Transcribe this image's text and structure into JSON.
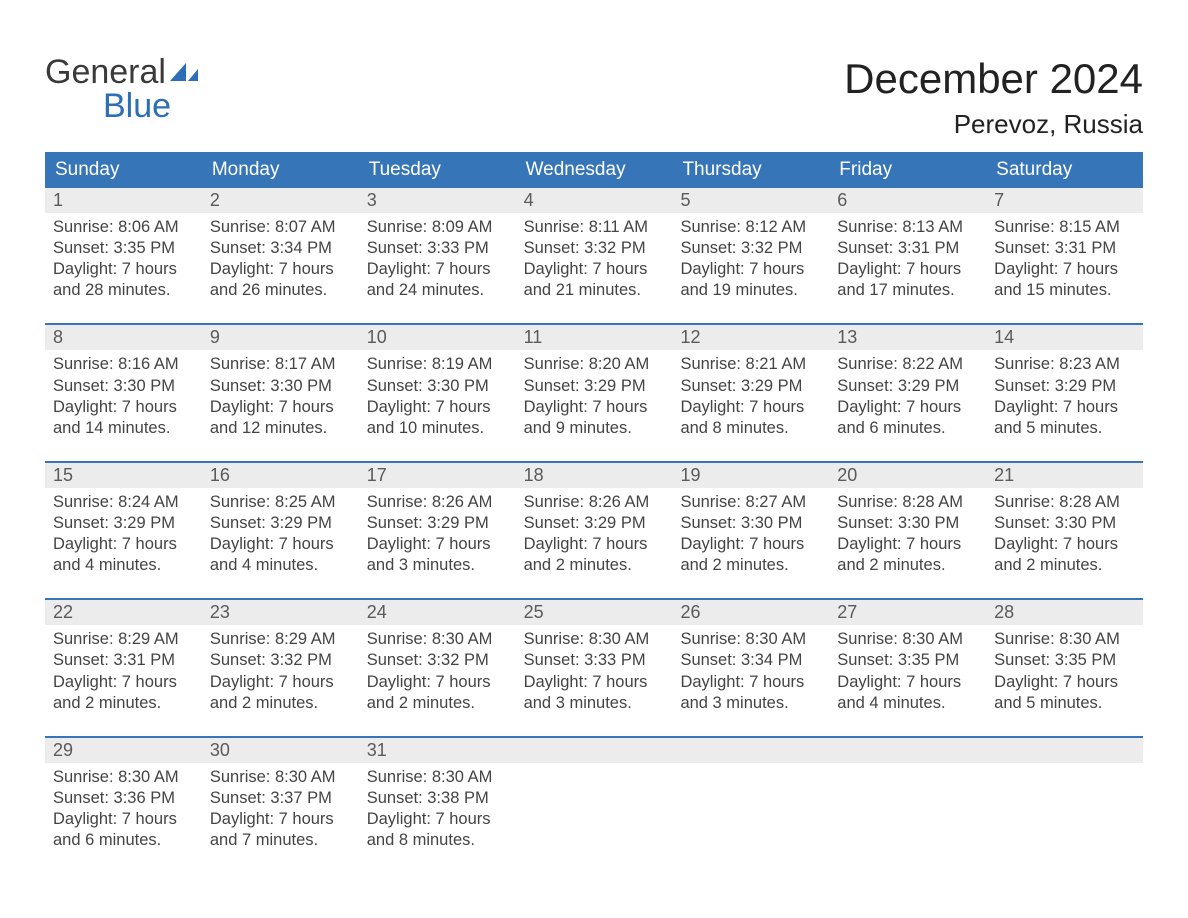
{
  "logo": {
    "word1": "General",
    "word2": "Blue",
    "accent_color": "#2c6fb6",
    "text_color": "#3a3a3a"
  },
  "title": "December 2024",
  "location": "Perevoz, Russia",
  "colors": {
    "header_bg": "#3676b8",
    "header_text": "#ffffff",
    "week_border": "#3676b8",
    "daynum_bg": "#ececec",
    "daynum_text": "#5a5a5a",
    "body_text": "#444444",
    "page_bg": "#ffffff"
  },
  "typography": {
    "month_title_fontsize": 42,
    "location_fontsize": 26,
    "dow_fontsize": 19,
    "daynum_fontsize": 18,
    "body_fontsize": 16.5,
    "font_family": "Arial"
  },
  "days_of_week": [
    "Sunday",
    "Monday",
    "Tuesday",
    "Wednesday",
    "Thursday",
    "Friday",
    "Saturday"
  ],
  "weeks": [
    [
      {
        "n": "1",
        "sunrise": "8:06 AM",
        "sunset": "3:35 PM",
        "daylight": "7 hours and 28 minutes."
      },
      {
        "n": "2",
        "sunrise": "8:07 AM",
        "sunset": "3:34 PM",
        "daylight": "7 hours and 26 minutes."
      },
      {
        "n": "3",
        "sunrise": "8:09 AM",
        "sunset": "3:33 PM",
        "daylight": "7 hours and 24 minutes."
      },
      {
        "n": "4",
        "sunrise": "8:11 AM",
        "sunset": "3:32 PM",
        "daylight": "7 hours and 21 minutes."
      },
      {
        "n": "5",
        "sunrise": "8:12 AM",
        "sunset": "3:32 PM",
        "daylight": "7 hours and 19 minutes."
      },
      {
        "n": "6",
        "sunrise": "8:13 AM",
        "sunset": "3:31 PM",
        "daylight": "7 hours and 17 minutes."
      },
      {
        "n": "7",
        "sunrise": "8:15 AM",
        "sunset": "3:31 PM",
        "daylight": "7 hours and 15 minutes."
      }
    ],
    [
      {
        "n": "8",
        "sunrise": "8:16 AM",
        "sunset": "3:30 PM",
        "daylight": "7 hours and 14 minutes."
      },
      {
        "n": "9",
        "sunrise": "8:17 AM",
        "sunset": "3:30 PM",
        "daylight": "7 hours and 12 minutes."
      },
      {
        "n": "10",
        "sunrise": "8:19 AM",
        "sunset": "3:30 PM",
        "daylight": "7 hours and 10 minutes."
      },
      {
        "n": "11",
        "sunrise": "8:20 AM",
        "sunset": "3:29 PM",
        "daylight": "7 hours and 9 minutes."
      },
      {
        "n": "12",
        "sunrise": "8:21 AM",
        "sunset": "3:29 PM",
        "daylight": "7 hours and 8 minutes."
      },
      {
        "n": "13",
        "sunrise": "8:22 AM",
        "sunset": "3:29 PM",
        "daylight": "7 hours and 6 minutes."
      },
      {
        "n": "14",
        "sunrise": "8:23 AM",
        "sunset": "3:29 PM",
        "daylight": "7 hours and 5 minutes."
      }
    ],
    [
      {
        "n": "15",
        "sunrise": "8:24 AM",
        "sunset": "3:29 PM",
        "daylight": "7 hours and 4 minutes."
      },
      {
        "n": "16",
        "sunrise": "8:25 AM",
        "sunset": "3:29 PM",
        "daylight": "7 hours and 4 minutes."
      },
      {
        "n": "17",
        "sunrise": "8:26 AM",
        "sunset": "3:29 PM",
        "daylight": "7 hours and 3 minutes."
      },
      {
        "n": "18",
        "sunrise": "8:26 AM",
        "sunset": "3:29 PM",
        "daylight": "7 hours and 2 minutes."
      },
      {
        "n": "19",
        "sunrise": "8:27 AM",
        "sunset": "3:30 PM",
        "daylight": "7 hours and 2 minutes."
      },
      {
        "n": "20",
        "sunrise": "8:28 AM",
        "sunset": "3:30 PM",
        "daylight": "7 hours and 2 minutes."
      },
      {
        "n": "21",
        "sunrise": "8:28 AM",
        "sunset": "3:30 PM",
        "daylight": "7 hours and 2 minutes."
      }
    ],
    [
      {
        "n": "22",
        "sunrise": "8:29 AM",
        "sunset": "3:31 PM",
        "daylight": "7 hours and 2 minutes."
      },
      {
        "n": "23",
        "sunrise": "8:29 AM",
        "sunset": "3:32 PM",
        "daylight": "7 hours and 2 minutes."
      },
      {
        "n": "24",
        "sunrise": "8:30 AM",
        "sunset": "3:32 PM",
        "daylight": "7 hours and 2 minutes."
      },
      {
        "n": "25",
        "sunrise": "8:30 AM",
        "sunset": "3:33 PM",
        "daylight": "7 hours and 3 minutes."
      },
      {
        "n": "26",
        "sunrise": "8:30 AM",
        "sunset": "3:34 PM",
        "daylight": "7 hours and 3 minutes."
      },
      {
        "n": "27",
        "sunrise": "8:30 AM",
        "sunset": "3:35 PM",
        "daylight": "7 hours and 4 minutes."
      },
      {
        "n": "28",
        "sunrise": "8:30 AM",
        "sunset": "3:35 PM",
        "daylight": "7 hours and 5 minutes."
      }
    ],
    [
      {
        "n": "29",
        "sunrise": "8:30 AM",
        "sunset": "3:36 PM",
        "daylight": "7 hours and 6 minutes."
      },
      {
        "n": "30",
        "sunrise": "8:30 AM",
        "sunset": "3:37 PM",
        "daylight": "7 hours and 7 minutes."
      },
      {
        "n": "31",
        "sunrise": "8:30 AM",
        "sunset": "3:38 PM",
        "daylight": "7 hours and 8 minutes."
      },
      {
        "empty": true
      },
      {
        "empty": true
      },
      {
        "empty": true
      },
      {
        "empty": true
      }
    ]
  ],
  "labels": {
    "sunrise": "Sunrise: ",
    "sunset": "Sunset: ",
    "daylight": "Daylight: "
  }
}
